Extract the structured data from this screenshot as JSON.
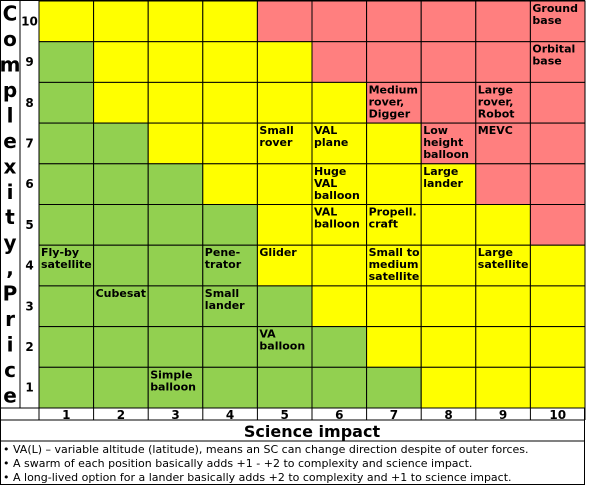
{
  "y_title": "Complexity, Price",
  "x_title": "Science impact",
  "rows": [
    "10",
    "9",
    "8",
    "7",
    "6",
    "5",
    "4",
    "3",
    "2",
    "1"
  ],
  "cols": [
    "1",
    "2",
    "3",
    "4",
    "5",
    "6",
    "7",
    "8",
    "9",
    "10"
  ],
  "colors": {
    "green": "#92d050",
    "yellow": "#ffff00",
    "red": "#ff7f7f",
    "border": "#000000"
  },
  "grid": [
    [
      "Y",
      "Y",
      "Y",
      "Y",
      "R",
      "R",
      "R",
      "R",
      "R",
      "R"
    ],
    [
      "G",
      "Y",
      "Y",
      "Y",
      "Y",
      "R",
      "R",
      "R",
      "R",
      "R"
    ],
    [
      "G",
      "Y",
      "Y",
      "Y",
      "Y",
      "Y",
      "R",
      "R",
      "R",
      "R"
    ],
    [
      "G",
      "G",
      "Y",
      "Y",
      "Y",
      "Y",
      "Y",
      "R",
      "R",
      "R"
    ],
    [
      "G",
      "G",
      "G",
      "Y",
      "Y",
      "Y",
      "Y",
      "Y",
      "R",
      "R"
    ],
    [
      "G",
      "G",
      "G",
      "G",
      "Y",
      "Y",
      "Y",
      "Y",
      "Y",
      "R"
    ],
    [
      "G",
      "G",
      "G",
      "G",
      "Y",
      "Y",
      "Y",
      "Y",
      "Y",
      "Y"
    ],
    [
      "G",
      "G",
      "G",
      "G",
      "G",
      "Y",
      "Y",
      "Y",
      "Y",
      "Y"
    ],
    [
      "G",
      "G",
      "G",
      "G",
      "G",
      "G",
      "Y",
      "Y",
      "Y",
      "Y"
    ],
    [
      "G",
      "G",
      "G",
      "G",
      "G",
      "G",
      "G",
      "Y",
      "Y",
      "Y"
    ]
  ],
  "labels": [
    {
      "row": 0,
      "col": 9,
      "lines": [
        "Ground",
        "base"
      ]
    },
    {
      "row": 1,
      "col": 9,
      "lines": [
        "Orbital",
        "base"
      ]
    },
    {
      "row": 2,
      "col": 6,
      "lines": [
        "Medium",
        "rover,",
        "Digger"
      ]
    },
    {
      "row": 2,
      "col": 8,
      "lines": [
        "Large",
        "rover,",
        "Robot"
      ]
    },
    {
      "row": 3,
      "col": 4,
      "lines": [
        "Small",
        "rover"
      ]
    },
    {
      "row": 3,
      "col": 5,
      "lines": [
        "VAL",
        "plane"
      ]
    },
    {
      "row": 3,
      "col": 7,
      "lines": [
        "Low",
        "height",
        "balloon"
      ]
    },
    {
      "row": 3,
      "col": 8,
      "lines": [
        "MEVC"
      ]
    },
    {
      "row": 4,
      "col": 5,
      "lines": [
        "Huge",
        "VAL",
        "balloon"
      ]
    },
    {
      "row": 4,
      "col": 7,
      "lines": [
        "Large",
        "lander"
      ]
    },
    {
      "row": 5,
      "col": 5,
      "lines": [
        "VAL",
        "balloon"
      ]
    },
    {
      "row": 5,
      "col": 6,
      "lines": [
        "Propell.",
        "craft"
      ]
    },
    {
      "row": 6,
      "col": 0,
      "lines": [
        "Fly-by",
        "satellite"
      ]
    },
    {
      "row": 6,
      "col": 3,
      "lines": [
        "Pene-",
        "trator"
      ]
    },
    {
      "row": 6,
      "col": 4,
      "lines": [
        "Glider"
      ]
    },
    {
      "row": 6,
      "col": 6,
      "lines": [
        "Small to",
        "medium",
        "satellite"
      ]
    },
    {
      "row": 6,
      "col": 8,
      "lines": [
        "Large",
        "satellite"
      ]
    },
    {
      "row": 7,
      "col": 1,
      "lines": [
        "Cubesat"
      ]
    },
    {
      "row": 7,
      "col": 3,
      "lines": [
        "Small",
        "lander"
      ]
    },
    {
      "row": 8,
      "col": 4,
      "lines": [
        "VA",
        "balloon"
      ]
    },
    {
      "row": 9,
      "col": 2,
      "lines": [
        "Simple",
        "balloon"
      ]
    }
  ],
  "notes": [
    "• VA(L) – variable altitude (latitude), means an SC can change direction despite of outer forces.",
    "• A swarm of each position basically adds +1 - +2 to complexity and science impact.",
    "• A long-lived option for a lander basically adds +2 to complexity and +1 to science impact."
  ]
}
